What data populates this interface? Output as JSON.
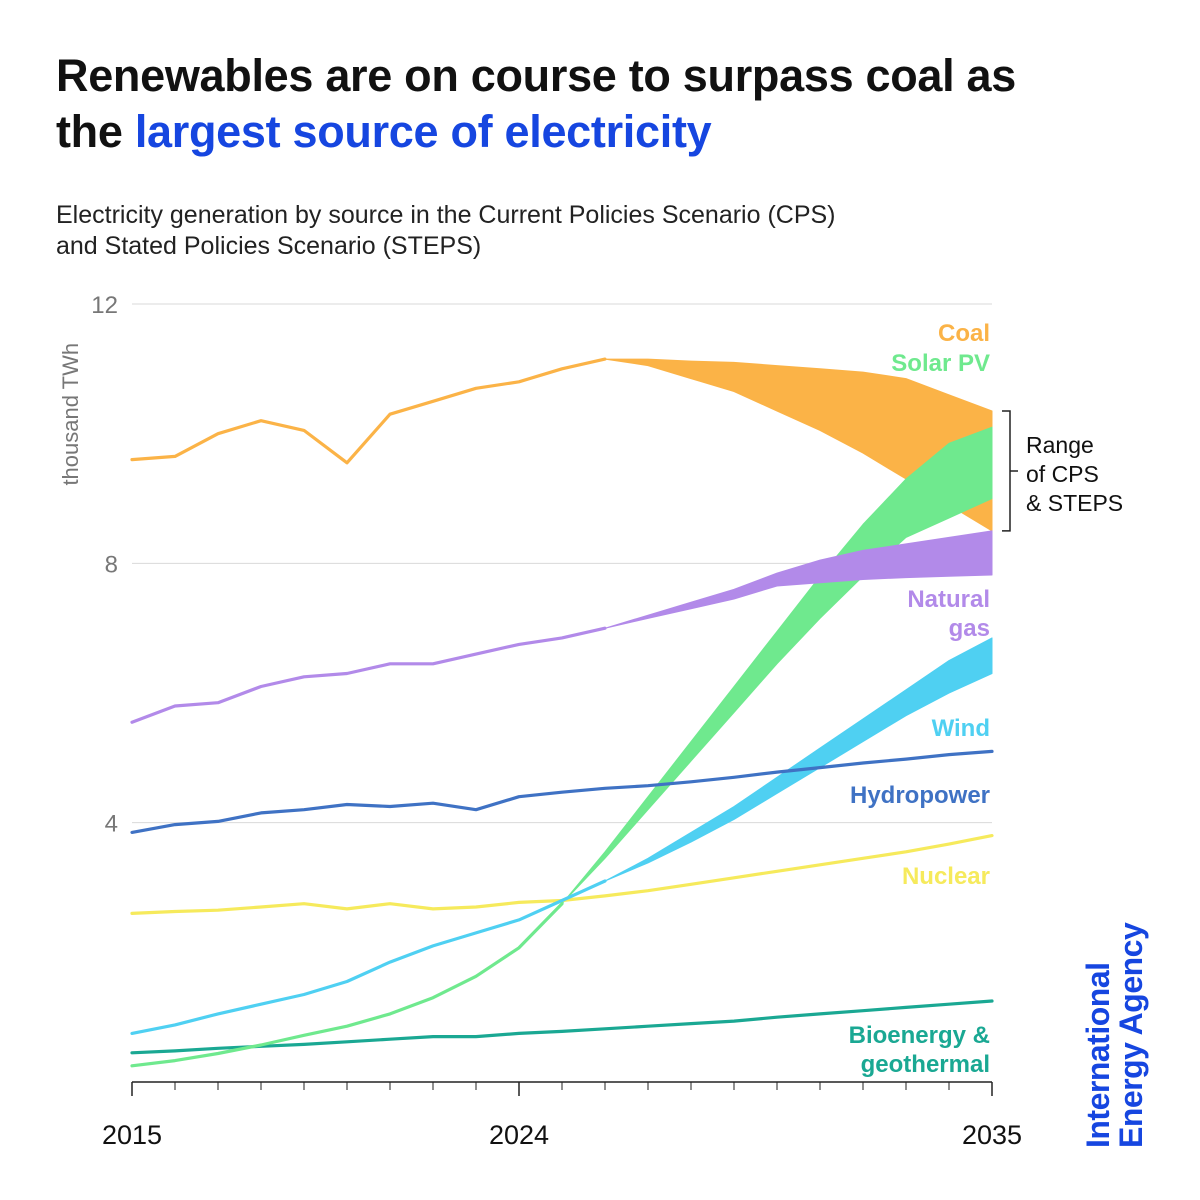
{
  "title": {
    "line1": "Renewables are on course to surpass coal as",
    "line2_plain": "the ",
    "line2_highlight": "largest source of electricity"
  },
  "subtitle": {
    "line1": "Electricity generation by source in the Current Policies Scenario (CPS)",
    "line2": "and Stated Policies Scenario (STEPS)"
  },
  "logo": {
    "line1": "International",
    "line2": "Energy Agency"
  },
  "colors": {
    "coal": "#fbb347",
    "solar": "#6fe98e",
    "gas": "#b28ae9",
    "wind": "#4fd0f2",
    "hydro": "#3f72c4",
    "nuclear": "#f6ea5c",
    "bio": "#1aa893",
    "accent": "#1646e0"
  },
  "chart_data": {
    "type": "line",
    "title": "Electricity generation by source in the Current Policies Scenario (CPS) and Stated Policies Scenario (STEPS)",
    "ylabel": "thousand TWh",
    "xlabel": "",
    "xlim": [
      2015,
      2035
    ],
    "ylim": [
      0,
      12
    ],
    "yticks": [
      "4",
      "8",
      "12"
    ],
    "xticks": [
      "2015",
      "2024",
      "2035"
    ],
    "range_label": [
      "Range",
      "of CPS",
      "& STEPS"
    ],
    "series": [
      {
        "key": "coal",
        "label": [
          "Coal"
        ],
        "history": [
          [
            2015,
            9.6
          ],
          [
            2016,
            9.65
          ],
          [
            2017,
            10.0
          ],
          [
            2018,
            10.2
          ],
          [
            2019,
            10.05
          ],
          [
            2020,
            9.55
          ],
          [
            2021,
            10.3
          ],
          [
            2022,
            10.5
          ],
          [
            2023,
            10.7
          ],
          [
            2024,
            10.8
          ],
          [
            2025,
            11.0
          ],
          [
            2026,
            11.15
          ]
        ],
        "upper": [
          [
            2026,
            11.15
          ],
          [
            2027,
            11.15
          ],
          [
            2028,
            11.12
          ],
          [
            2029,
            11.1
          ],
          [
            2030,
            11.05
          ],
          [
            2031,
            11.0
          ],
          [
            2032,
            10.95
          ],
          [
            2033,
            10.85
          ],
          [
            2034,
            10.6
          ],
          [
            2035,
            10.35
          ]
        ],
        "lower": [
          [
            2026,
            11.15
          ],
          [
            2027,
            11.05
          ],
          [
            2028,
            10.85
          ],
          [
            2029,
            10.65
          ],
          [
            2030,
            10.35
          ],
          [
            2031,
            10.05
          ],
          [
            2032,
            9.7
          ],
          [
            2033,
            9.3
          ],
          [
            2034,
            8.9
          ],
          [
            2035,
            8.5
          ]
        ]
      },
      {
        "key": "solar",
        "label": [
          "Solar PV"
        ],
        "history": [
          [
            2015,
            0.25
          ],
          [
            2016,
            0.33
          ],
          [
            2017,
            0.44
          ],
          [
            2018,
            0.57
          ],
          [
            2019,
            0.72
          ],
          [
            2020,
            0.86
          ],
          [
            2021,
            1.05
          ],
          [
            2022,
            1.3
          ],
          [
            2023,
            1.63
          ],
          [
            2024,
            2.07
          ],
          [
            2025,
            2.75
          ]
        ],
        "upper": [
          [
            2025,
            2.75
          ],
          [
            2026,
            3.55
          ],
          [
            2027,
            4.4
          ],
          [
            2028,
            5.25
          ],
          [
            2029,
            6.1
          ],
          [
            2030,
            6.95
          ],
          [
            2031,
            7.8
          ],
          [
            2032,
            8.6
          ],
          [
            2033,
            9.3
          ],
          [
            2034,
            9.85
          ],
          [
            2035,
            10.1
          ]
        ],
        "lower": [
          [
            2025,
            2.75
          ],
          [
            2026,
            3.45
          ],
          [
            2027,
            4.2
          ],
          [
            2028,
            4.95
          ],
          [
            2029,
            5.7
          ],
          [
            2030,
            6.45
          ],
          [
            2031,
            7.15
          ],
          [
            2032,
            7.8
          ],
          [
            2033,
            8.4
          ],
          [
            2034,
            8.7
          ],
          [
            2035,
            9.0
          ]
        ]
      },
      {
        "key": "gas",
        "label": [
          "Natural",
          "gas"
        ],
        "history": [
          [
            2015,
            5.55
          ],
          [
            2016,
            5.8
          ],
          [
            2017,
            5.85
          ],
          [
            2018,
            6.1
          ],
          [
            2019,
            6.25
          ],
          [
            2020,
            6.3
          ],
          [
            2021,
            6.45
          ],
          [
            2022,
            6.45
          ],
          [
            2023,
            6.6
          ],
          [
            2024,
            6.75
          ],
          [
            2025,
            6.85
          ],
          [
            2026,
            7.0
          ]
        ],
        "upper": [
          [
            2026,
            7.0
          ],
          [
            2027,
            7.2
          ],
          [
            2028,
            7.4
          ],
          [
            2029,
            7.6
          ],
          [
            2030,
            7.85
          ],
          [
            2031,
            8.05
          ],
          [
            2032,
            8.2
          ],
          [
            2033,
            8.3
          ],
          [
            2034,
            8.4
          ],
          [
            2035,
            8.5
          ]
        ],
        "lower": [
          [
            2026,
            7.0
          ],
          [
            2027,
            7.15
          ],
          [
            2028,
            7.3
          ],
          [
            2029,
            7.45
          ],
          [
            2030,
            7.65
          ],
          [
            2031,
            7.7
          ],
          [
            2032,
            7.75
          ],
          [
            2033,
            7.78
          ],
          [
            2034,
            7.8
          ],
          [
            2035,
            7.82
          ]
        ]
      },
      {
        "key": "wind",
        "label": [
          "Wind"
        ],
        "history": [
          [
            2015,
            0.75
          ],
          [
            2016,
            0.88
          ],
          [
            2017,
            1.05
          ],
          [
            2018,
            1.2
          ],
          [
            2019,
            1.35
          ],
          [
            2020,
            1.55
          ],
          [
            2021,
            1.85
          ],
          [
            2022,
            2.1
          ],
          [
            2023,
            2.3
          ],
          [
            2024,
            2.5
          ],
          [
            2025,
            2.8
          ],
          [
            2026,
            3.1
          ]
        ],
        "upper": [
          [
            2026,
            3.1
          ],
          [
            2027,
            3.45
          ],
          [
            2028,
            3.85
          ],
          [
            2029,
            4.25
          ],
          [
            2030,
            4.7
          ],
          [
            2031,
            5.15
          ],
          [
            2032,
            5.6
          ],
          [
            2033,
            6.05
          ],
          [
            2034,
            6.5
          ],
          [
            2035,
            6.85
          ]
        ],
        "lower": [
          [
            2026,
            3.1
          ],
          [
            2027,
            3.38
          ],
          [
            2028,
            3.7
          ],
          [
            2029,
            4.05
          ],
          [
            2030,
            4.45
          ],
          [
            2031,
            4.85
          ],
          [
            2032,
            5.25
          ],
          [
            2033,
            5.65
          ],
          [
            2034,
            6.0
          ],
          [
            2035,
            6.3
          ]
        ]
      },
      {
        "key": "hydro",
        "label": [
          "Hydropower"
        ],
        "history": [
          [
            2015,
            3.85
          ],
          [
            2016,
            3.97
          ],
          [
            2017,
            4.02
          ],
          [
            2018,
            4.15
          ],
          [
            2019,
            4.2
          ],
          [
            2020,
            4.28
          ],
          [
            2021,
            4.25
          ],
          [
            2022,
            4.3
          ],
          [
            2023,
            4.2
          ],
          [
            2024,
            4.4
          ],
          [
            2025,
            4.47
          ],
          [
            2026,
            4.53
          ],
          [
            2027,
            4.57
          ],
          [
            2028,
            4.63
          ],
          [
            2029,
            4.7
          ],
          [
            2030,
            4.78
          ],
          [
            2031,
            4.85
          ],
          [
            2032,
            4.92
          ],
          [
            2033,
            4.98
          ],
          [
            2034,
            5.05
          ],
          [
            2035,
            5.1
          ]
        ]
      },
      {
        "key": "nuclear",
        "label": [
          "Nuclear"
        ],
        "history": [
          [
            2015,
            2.6
          ],
          [
            2016,
            2.63
          ],
          [
            2017,
            2.65
          ],
          [
            2018,
            2.7
          ],
          [
            2019,
            2.75
          ],
          [
            2020,
            2.67
          ],
          [
            2021,
            2.75
          ],
          [
            2022,
            2.67
          ],
          [
            2023,
            2.7
          ],
          [
            2024,
            2.77
          ],
          [
            2025,
            2.8
          ],
          [
            2026,
            2.87
          ],
          [
            2027,
            2.95
          ],
          [
            2028,
            3.05
          ],
          [
            2029,
            3.15
          ],
          [
            2030,
            3.25
          ],
          [
            2031,
            3.35
          ],
          [
            2032,
            3.45
          ],
          [
            2033,
            3.55
          ],
          [
            2034,
            3.67
          ],
          [
            2035,
            3.8
          ]
        ]
      },
      {
        "key": "bio",
        "label": [
          "Bioenergy &",
          "geothermal"
        ],
        "history": [
          [
            2015,
            0.45
          ],
          [
            2016,
            0.48
          ],
          [
            2017,
            0.52
          ],
          [
            2018,
            0.55
          ],
          [
            2019,
            0.58
          ],
          [
            2020,
            0.62
          ],
          [
            2021,
            0.66
          ],
          [
            2022,
            0.7
          ],
          [
            2023,
            0.7
          ],
          [
            2024,
            0.75
          ],
          [
            2025,
            0.78
          ],
          [
            2026,
            0.82
          ],
          [
            2027,
            0.86
          ],
          [
            2028,
            0.9
          ],
          [
            2029,
            0.94
          ],
          [
            2030,
            1.0
          ],
          [
            2031,
            1.05
          ],
          [
            2032,
            1.1
          ],
          [
            2033,
            1.15
          ],
          [
            2034,
            1.2
          ],
          [
            2035,
            1.25
          ]
        ]
      }
    ]
  }
}
